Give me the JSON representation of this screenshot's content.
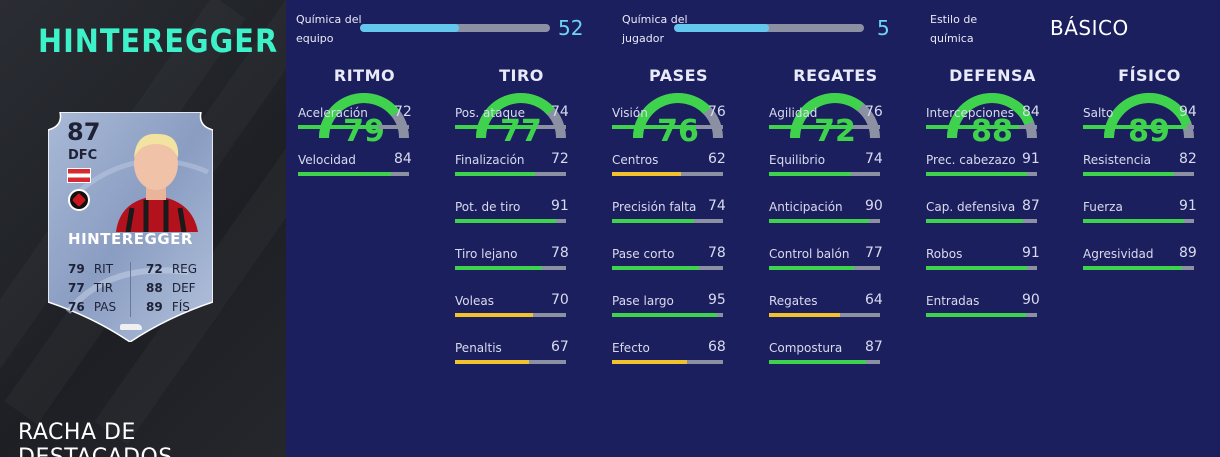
{
  "player": {
    "name": "HINTEREGGER",
    "promo": "RACHA DE DESTACADOS"
  },
  "card": {
    "rating": "87",
    "position": "DFC",
    "name": "HINTEREGGER",
    "stats_left": [
      {
        "value": "79",
        "label": "RIT"
      },
      {
        "value": "77",
        "label": "TIR"
      },
      {
        "value": "76",
        "label": "PAS"
      }
    ],
    "stats_right": [
      {
        "value": "72",
        "label": "REG"
      },
      {
        "value": "88",
        "label": "DEF"
      },
      {
        "value": "89",
        "label": "FÍS"
      }
    ]
  },
  "chemistry": {
    "team_label_1": "Química del",
    "team_label_2": "equipo",
    "team_value": 52,
    "team_fraction": 0.52,
    "player_label_1": "Química del",
    "player_label_2": "jugador",
    "player_value": 5,
    "player_fraction": 0.5,
    "style_label_1": "Estilo de",
    "style_label_2": "química",
    "style_value": "BÁSICO"
  },
  "colors": {
    "green": "#3fd24c",
    "yellow": "#f2c12e",
    "track": "#8c90a3",
    "chem_blue": "#64c8ee",
    "name_teal": "#3df2c9"
  },
  "categories": [
    {
      "title": "RITMO",
      "value": 79,
      "stats": [
        {
          "name": "Aceleración",
          "value": 72
        },
        {
          "name": "Velocidad",
          "value": 84
        }
      ]
    },
    {
      "title": "TIRO",
      "value": 77,
      "stats": [
        {
          "name": "Pos. ataque",
          "value": 74
        },
        {
          "name": "Finalización",
          "value": 72
        },
        {
          "name": "Pot. de tiro",
          "value": 91
        },
        {
          "name": "Tiro lejano",
          "value": 78
        },
        {
          "name": "Voleas",
          "value": 70
        },
        {
          "name": "Penaltis",
          "value": 67
        }
      ]
    },
    {
      "title": "PASES",
      "value": 76,
      "stats": [
        {
          "name": "Visión",
          "value": 76
        },
        {
          "name": "Centros",
          "value": 62
        },
        {
          "name": "Precisión falta",
          "value": 74
        },
        {
          "name": "Pase corto",
          "value": 78
        },
        {
          "name": "Pase largo",
          "value": 95
        },
        {
          "name": "Efecto",
          "value": 68
        }
      ]
    },
    {
      "title": "REGATES",
      "value": 72,
      "stats": [
        {
          "name": "Agilidad",
          "value": 76
        },
        {
          "name": "Equilibrio",
          "value": 74
        },
        {
          "name": "Anticipación",
          "value": 90
        },
        {
          "name": "Control balón",
          "value": 77
        },
        {
          "name": "Regates",
          "value": 64
        },
        {
          "name": "Compostura",
          "value": 87
        }
      ]
    },
    {
      "title": "DEFENSA",
      "value": 88,
      "stats": [
        {
          "name": "Intercepciones",
          "value": 84
        },
        {
          "name": "Prec. cabezazo",
          "value": 91
        },
        {
          "name": "Cap. defensiva",
          "value": 87
        },
        {
          "name": "Robos",
          "value": 91
        },
        {
          "name": "Entradas",
          "value": 90
        }
      ]
    },
    {
      "title": "FÍSICO",
      "value": 89,
      "stats": [
        {
          "name": "Salto",
          "value": 94
        },
        {
          "name": "Resistencia",
          "value": 82
        },
        {
          "name": "Fuerza",
          "value": 91
        },
        {
          "name": "Agresividad",
          "value": 89
        }
      ]
    }
  ]
}
